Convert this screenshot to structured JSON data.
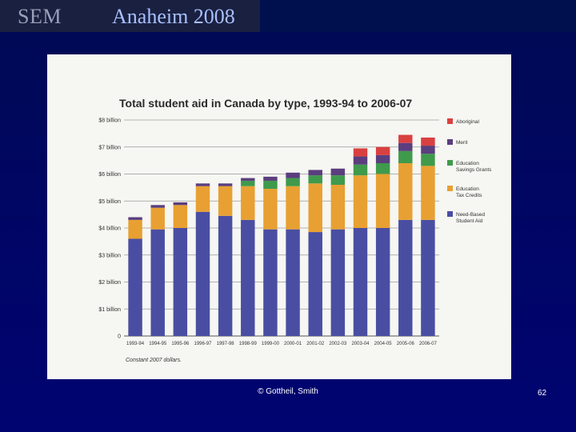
{
  "slide": {
    "brand": "SEM",
    "title": "Anaheim 2008",
    "credit": "© Gottheil, Smith",
    "page_number": "62"
  },
  "chart_data": {
    "type": "bar",
    "stacked": true,
    "title": "Total student aid in Canada by type, 1993-94 to 2006-07",
    "footnote": "Constant 2007 dollars.",
    "xlabel": "",
    "ylabel": "",
    "ylim": [
      0,
      8
    ],
    "y_ticks": [
      {
        "value": 0,
        "label": "0"
      },
      {
        "value": 1,
        "label": "$1 billion"
      },
      {
        "value": 2,
        "label": "$2 billion"
      },
      {
        "value": 3,
        "label": "$3 billion"
      },
      {
        "value": 4,
        "label": "$4 billion"
      },
      {
        "value": 5,
        "label": "$5 billion"
      },
      {
        "value": 6,
        "label": "$6 billion"
      },
      {
        "value": 7,
        "label": "$7 billion"
      },
      {
        "value": 8,
        "label": "$8 billion"
      }
    ],
    "categories": [
      "1993-94",
      "1994-95",
      "1995-96",
      "1996-97",
      "1997-98",
      "1998-99",
      "1999-00",
      "2000-01",
      "2001-02",
      "2002-03",
      "2003-04",
      "2004-05",
      "2005-06",
      "2006-07"
    ],
    "series": [
      {
        "name": "Need-Based Student Aid",
        "color": "#4a4ea2",
        "values": [
          3.6,
          3.95,
          4.0,
          4.6,
          4.45,
          4.3,
          3.95,
          3.95,
          3.85,
          3.95,
          4.0,
          4.0,
          4.3,
          4.3
        ]
      },
      {
        "name": "Education Tax Credits",
        "color": "#e8a032",
        "values": [
          0.7,
          0.8,
          0.85,
          0.95,
          1.1,
          1.25,
          1.5,
          1.6,
          1.8,
          1.65,
          1.95,
          2.0,
          2.1,
          2.0
        ]
      },
      {
        "name": "Education Savings Grants",
        "color": "#3f9a4c",
        "values": [
          0.0,
          0.0,
          0.0,
          0.0,
          0.0,
          0.2,
          0.3,
          0.3,
          0.3,
          0.35,
          0.4,
          0.4,
          0.45,
          0.45
        ]
      },
      {
        "name": "Merit",
        "color": "#5a3e7e",
        "values": [
          0.1,
          0.1,
          0.1,
          0.1,
          0.1,
          0.1,
          0.15,
          0.2,
          0.2,
          0.25,
          0.3,
          0.3,
          0.3,
          0.3
        ]
      },
      {
        "name": "Aboriginal",
        "color": "#d94040",
        "values": [
          0.0,
          0.0,
          0.0,
          0.0,
          0.0,
          0.0,
          0.0,
          0.0,
          0.0,
          0.0,
          0.3,
          0.3,
          0.3,
          0.3
        ]
      }
    ],
    "legend": [
      {
        "label": "Aboriginal",
        "color": "#d94040"
      },
      {
        "label": "Merit",
        "color": "#5a3e7e"
      },
      {
        "label": "Education Savings Grants",
        "color": "#3f9a4c"
      },
      {
        "label": "Education Tax Credits",
        "color": "#e8a032"
      },
      {
        "label": "Need-Based Student Aid",
        "color": "#4a4ea2"
      }
    ],
    "legend_position": "right",
    "grid": true
  }
}
